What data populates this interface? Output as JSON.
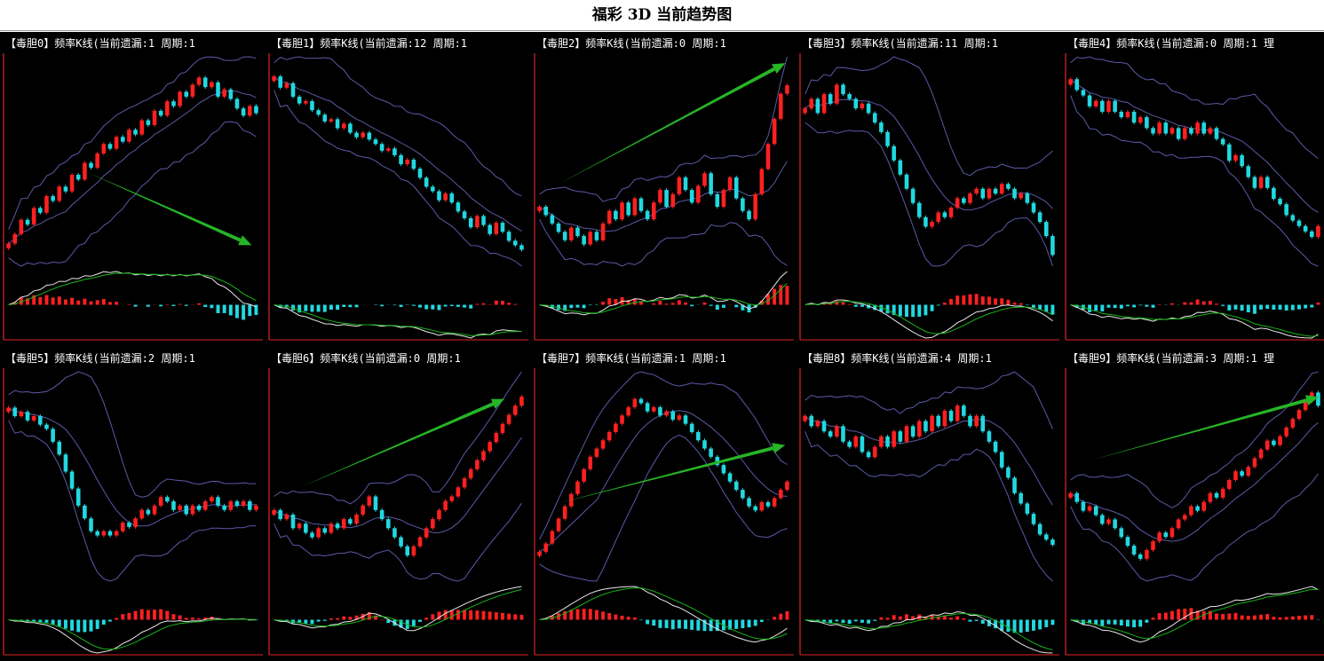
{
  "page": {
    "title": "福彩 3D 当前趋势图"
  },
  "colors": {
    "background": "#000000",
    "axis": "#b41e1e",
    "candle_up": "#ff2020",
    "candle_down": "#22d8e0",
    "band": "#5a5aa8",
    "arrow": "#26b526",
    "macd_fast": "#e8e8e8",
    "macd_slow": "#18b418",
    "hist_pos": "#ff2020",
    "hist_neg": "#22d8e0",
    "header_text": "#ffffff"
  },
  "panels": [
    {
      "header": "【毒胆0】频率K线(当前遗漏:1 周期:1"
    },
    {
      "header": "【毒胆1】频率K线(当前遗漏:12 周期:1"
    },
    {
      "header": "【毒胆2】频率K线(当前遗漏:0 周期:1"
    },
    {
      "header": "【毒胆3】频率K线(当前遗漏:11 周期:1"
    },
    {
      "header": "【毒胆4】频率K线(当前遗漏:0 周期:1 理"
    },
    {
      "header": "【毒胆5】频率K线(当前遗漏:2 周期:1"
    },
    {
      "header": "【毒胆6】频率K线(当前遗漏:0 周期:1"
    },
    {
      "header": "【毒胆7】频率K线(当前遗漏:1 周期:1"
    },
    {
      "header": "【毒胆8】频率K线(当前遗漏:4 周期:1"
    },
    {
      "header": "【毒胆9】频率K线(当前遗漏:3 周期:1 理"
    }
  ],
  "chart_data": [
    {
      "type": "line",
      "name": "毒胆0",
      "series": [
        {
          "values": [
            18,
            22,
            28,
            26,
            33,
            31,
            38,
            36,
            42,
            40,
            47,
            45,
            52,
            50,
            56,
            60,
            58,
            63,
            61,
            66,
            64,
            70,
            68,
            74,
            72,
            78,
            76,
            82,
            80,
            85,
            88,
            84,
            86,
            80,
            83,
            79,
            75,
            72,
            76,
            73
          ]
        }
      ],
      "arrow": [
        0.32,
        0.55,
        0.97,
        0.9
      ]
    },
    {
      "type": "line",
      "name": "毒胆1",
      "series": [
        {
          "values": [
            85,
            80,
            82,
            76,
            73,
            74,
            70,
            68,
            65,
            66,
            62,
            64,
            60,
            58,
            60,
            57,
            55,
            52,
            53,
            50,
            46,
            48,
            44,
            40,
            36,
            34,
            30,
            33,
            29,
            25,
            22,
            18,
            23,
            19,
            15,
            20,
            16,
            12,
            10,
            8
          ]
        }
      ]
    },
    {
      "type": "line",
      "name": "毒胆2",
      "series": [
        {
          "values": [
            42,
            38,
            34,
            30,
            26,
            32,
            28,
            24,
            30,
            26,
            34,
            40,
            36,
            44,
            38,
            46,
            40,
            36,
            44,
            50,
            42,
            48,
            56,
            50,
            44,
            52,
            58,
            48,
            42,
            50,
            56,
            46,
            40,
            36,
            48,
            60,
            72,
            84,
            96,
            100
          ]
        }
      ],
      "arrow": [
        0.1,
        0.6,
        0.98,
        0.03
      ]
    },
    {
      "type": "line",
      "name": "毒胆3",
      "series": [
        {
          "values": [
            78,
            82,
            76,
            84,
            80,
            88,
            84,
            82,
            78,
            80,
            76,
            72,
            68,
            62,
            56,
            50,
            44,
            38,
            32,
            28,
            30,
            34,
            32,
            36,
            40,
            38,
            42,
            44,
            40,
            44,
            42,
            46,
            44,
            40,
            42,
            38,
            34,
            30,
            24,
            16
          ]
        }
      ]
    },
    {
      "type": "line",
      "name": "毒胆4",
      "series": [
        {
          "values": [
            70,
            66,
            64,
            60,
            62,
            58,
            62,
            58,
            56,
            58,
            54,
            56,
            52,
            50,
            54,
            50,
            52,
            48,
            52,
            50,
            54,
            50,
            52,
            48,
            46,
            40,
            42,
            38,
            34,
            30,
            34,
            30,
            26,
            24,
            20,
            18,
            16,
            14,
            12,
            16
          ]
        }
      ]
    },
    {
      "type": "line",
      "name": "毒胆5",
      "series": [
        {
          "values": [
            80,
            76,
            78,
            74,
            76,
            72,
            70,
            64,
            58,
            50,
            42,
            34,
            28,
            22,
            20,
            22,
            20,
            22,
            26,
            24,
            28,
            32,
            30,
            34,
            38,
            36,
            32,
            34,
            30,
            34,
            32,
            36,
            38,
            34,
            32,
            36,
            34,
            36,
            32,
            34
          ]
        }
      ]
    },
    {
      "type": "line",
      "name": "毒胆6",
      "series": [
        {
          "values": [
            40,
            36,
            38,
            32,
            34,
            30,
            28,
            32,
            30,
            34,
            32,
            36,
            34,
            38,
            42,
            46,
            40,
            36,
            32,
            28,
            24,
            20,
            24,
            28,
            32,
            36,
            40,
            44,
            46,
            50,
            54,
            58,
            62,
            66,
            70,
            74,
            78,
            82,
            86,
            90
          ]
        }
      ],
      "arrow": [
        0.12,
        0.55,
        0.92,
        0.13
      ]
    },
    {
      "type": "line",
      "name": "毒胆7",
      "series": [
        {
          "values": [
            20,
            24,
            30,
            36,
            42,
            48,
            54,
            60,
            66,
            70,
            74,
            78,
            82,
            86,
            90,
            94,
            92,
            88,
            90,
            86,
            88,
            84,
            86,
            82,
            78,
            74,
            70,
            66,
            62,
            58,
            54,
            50,
            46,
            42,
            40,
            44,
            42,
            46,
            50,
            54
          ]
        }
      ],
      "arrow": [
        0.08,
        0.63,
        0.98,
        0.35
      ]
    },
    {
      "type": "line",
      "name": "毒胆8",
      "series": [
        {
          "values": [
            60,
            56,
            58,
            54,
            52,
            56,
            50,
            48,
            52,
            46,
            44,
            48,
            52,
            48,
            54,
            50,
            56,
            52,
            58,
            54,
            60,
            56,
            62,
            58,
            64,
            60,
            56,
            60,
            54,
            50,
            46,
            40,
            36,
            30,
            26,
            22,
            18,
            14,
            12,
            10
          ]
        }
      ]
    },
    {
      "type": "line",
      "name": "毒胆9",
      "series": [
        {
          "values": [
            50,
            46,
            42,
            44,
            40,
            36,
            38,
            34,
            30,
            26,
            22,
            20,
            24,
            28,
            32,
            30,
            34,
            38,
            40,
            44,
            42,
            46,
            50,
            48,
            52,
            56,
            60,
            58,
            62,
            66,
            70,
            74,
            72,
            76,
            80,
            84,
            88,
            92,
            96,
            90
          ]
        }
      ],
      "arrow": [
        0.1,
        0.42,
        0.99,
        0.12
      ]
    }
  ]
}
